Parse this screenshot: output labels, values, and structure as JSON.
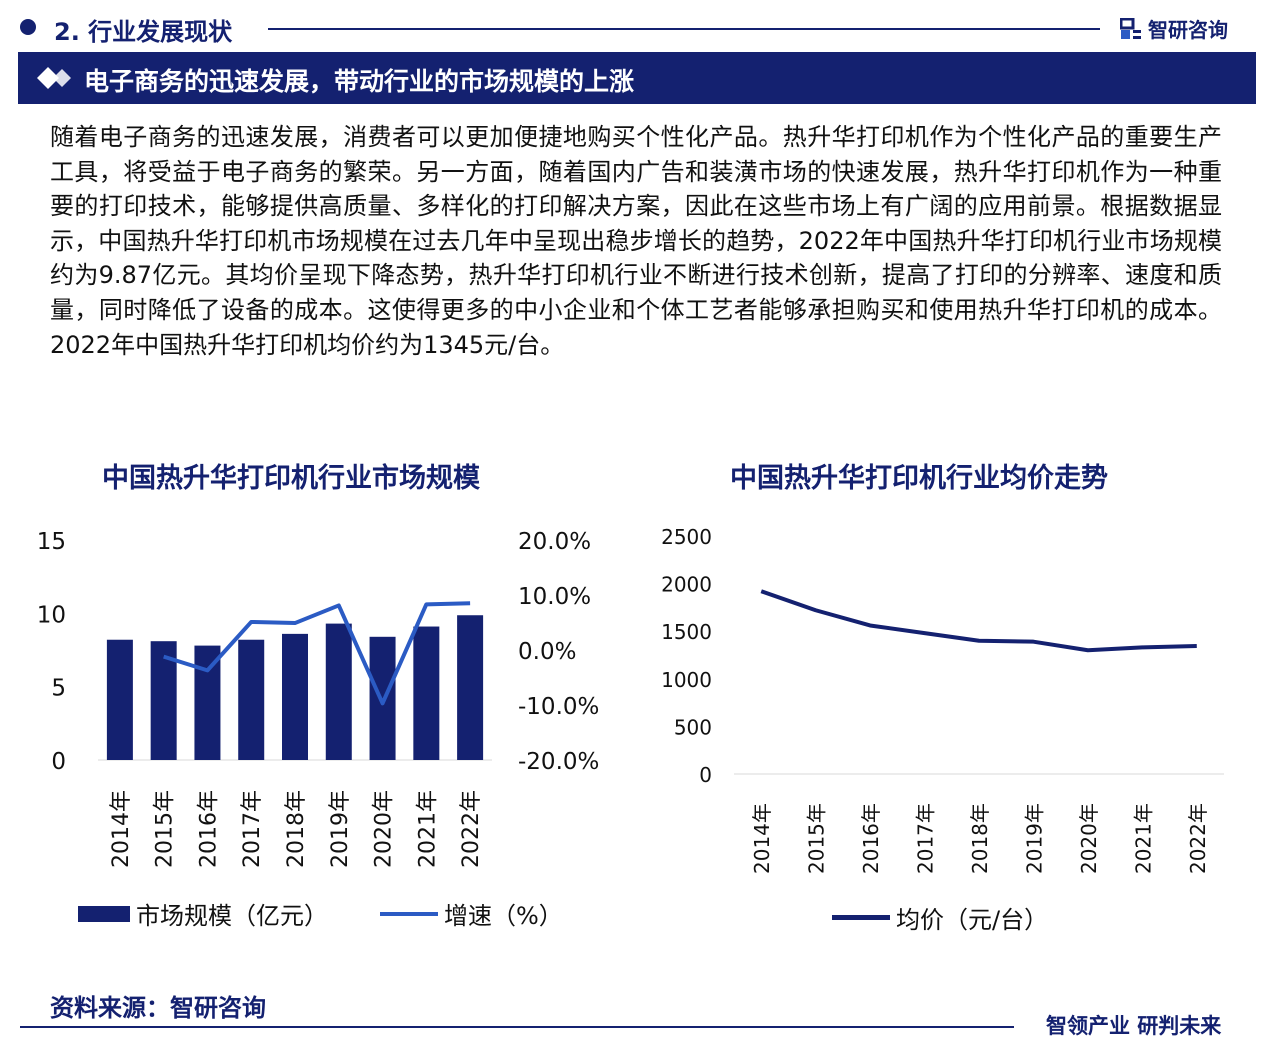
{
  "header": {
    "section_title": "2. 行业发展现状",
    "brand": "智研咨询",
    "banner": "电子商务的迅速发展，带动行业的市场规模的上涨"
  },
  "paragraph": "随着电子商务的迅速发展，消费者可以更加便捷地购买个性化产品。热升华打印机作为个性化产品的重要生产工具，将受益于电子商务的繁荣。另一方面，随着国内广告和装潢市场的快速发展，热升华打印机作为一种重要的打印技术，能够提供高质量、多样化的打印解决方案，因此在这些市场上有广阔的应用前景。根据数据显示，中国热升华打印机市场规模在过去几年中呈现出稳步增长的趋势，2022年中国热升华打印机行业市场规模约为9.87亿元。其均价呈现下降态势，热升华打印机行业不断进行技术创新，提高了打印的分辨率、速度和质量，同时降低了设备的成本。这使得更多的中小企业和个体工艺者能够承担购买和使用热升华打印机的成本。2022年中国热升华打印机均价约为1345元/台。",
  "footer": {
    "source": "资料来源：智研咨询",
    "slogan": "智领产业 研判未来"
  },
  "colors": {
    "primary": "#142170",
    "growth_line": "#2b5bc4"
  },
  "chart_data": [
    {
      "type": "bar",
      "title": "中国热升华打印机行业市场规模",
      "categories": [
        "2014年",
        "2015年",
        "2016年",
        "2017年",
        "2018年",
        "2019年",
        "2020年",
        "2021年",
        "2022年"
      ],
      "yticks": [
        "0",
        "5",
        "10",
        "15"
      ],
      "y2ticks": [
        "-20.0%",
        "-10.0%",
        "0.0%",
        "10.0%",
        "20.0%"
      ],
      "ylim": [
        0,
        15
      ],
      "y2lim": [
        -20,
        20
      ],
      "legend_placement": "bottom",
      "series": [
        {
          "name": "市场规模（亿元）",
          "type": "bar",
          "axis": "left",
          "values": [
            8.2,
            8.1,
            7.8,
            8.2,
            8.6,
            9.3,
            8.4,
            9.1,
            9.87
          ]
        },
        {
          "name": "增速（%）",
          "type": "line",
          "axis": "right",
          "values": [
            null,
            -1.2,
            -3.7,
            5.1,
            4.9,
            8.1,
            -9.7,
            8.3,
            8.5
          ]
        }
      ]
    },
    {
      "type": "line",
      "title": "中国热升华打印机行业均价走势",
      "categories": [
        "2014年",
        "2015年",
        "2016年",
        "2017年",
        "2018年",
        "2019年",
        "2020年",
        "2021年",
        "2022年"
      ],
      "yticks": [
        "0",
        "500",
        "1000",
        "1500",
        "2000",
        "2500"
      ],
      "ylim": [
        0,
        2500
      ],
      "legend_placement": "bottom",
      "series": [
        {
          "name": "均价（元/台）",
          "values": [
            1920,
            1720,
            1560,
            1480,
            1400,
            1390,
            1300,
            1330,
            1345
          ]
        }
      ]
    }
  ]
}
